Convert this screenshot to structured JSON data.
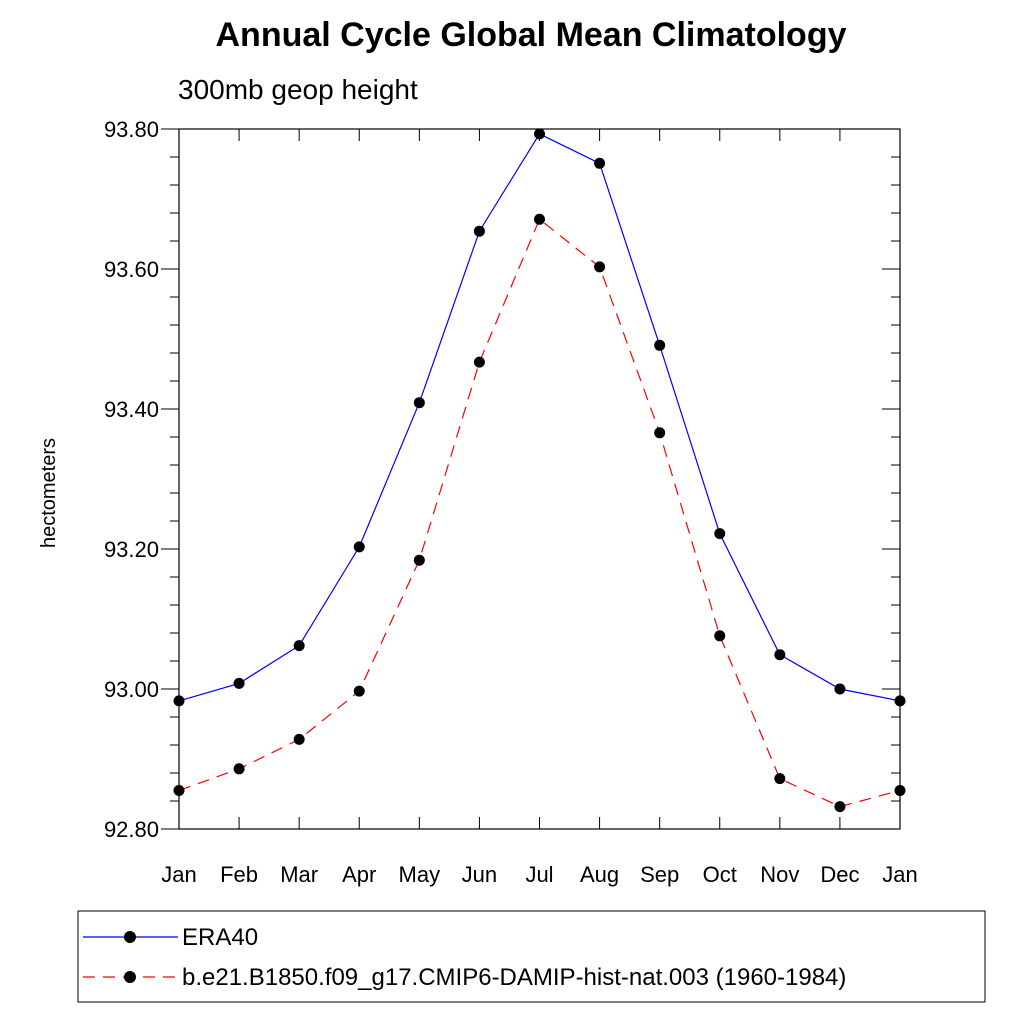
{
  "chart_data": {
    "type": "line",
    "title": "Annual Cycle Global Mean Climatology",
    "subtitle": "300mb geop height",
    "xlabel": "",
    "ylabel": "hectometers",
    "categories": [
      "Jan",
      "Feb",
      "Mar",
      "Apr",
      "May",
      "Jun",
      "Jul",
      "Aug",
      "Sep",
      "Oct",
      "Nov",
      "Dec",
      "Jan"
    ],
    "ylim": [
      92.8,
      93.8
    ],
    "yticks": [
      "92.80",
      "93.00",
      "93.20",
      "93.40",
      "93.60",
      "93.80"
    ],
    "grid": false,
    "legend_position": "bottom",
    "series": [
      {
        "name": "ERA40",
        "color": "#0000ff",
        "line_style": "solid",
        "marker": "filled-circle",
        "values": [
          92.983,
          93.008,
          93.062,
          93.203,
          93.409,
          93.654,
          93.793,
          93.751,
          93.491,
          93.222,
          93.049,
          93.0,
          92.983
        ]
      },
      {
        "name": "b.e21.B1850.f09_g17.CMIP6-DAMIP-hist-nat.003 (1960-1984)",
        "color": "#ff0000",
        "line_style": "dashed",
        "marker": "filled-circle",
        "values": [
          92.855,
          92.886,
          92.928,
          92.997,
          93.184,
          93.467,
          93.671,
          93.603,
          93.366,
          93.076,
          92.872,
          92.832,
          92.855
        ]
      }
    ]
  }
}
